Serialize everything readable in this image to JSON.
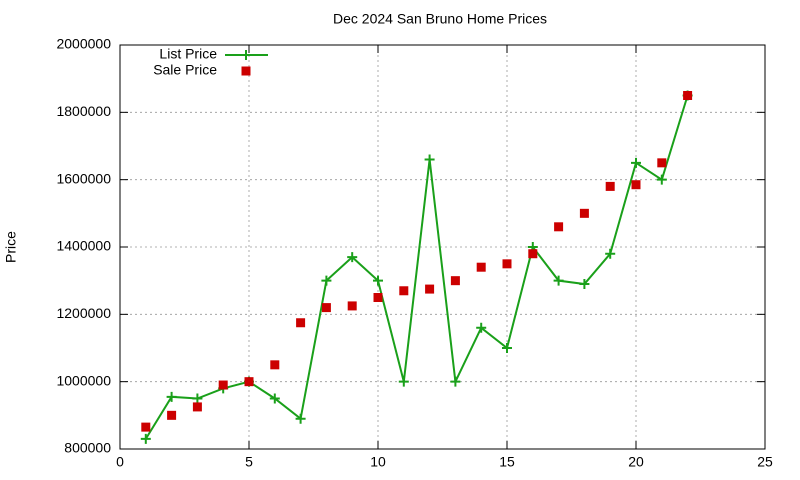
{
  "chart_data": {
    "type": "line",
    "title": "Dec 2024 San Bruno Home Prices",
    "y_label": "Price",
    "x": [
      1,
      2,
      3,
      4,
      5,
      6,
      7,
      8,
      9,
      10,
      11,
      12,
      13,
      14,
      15,
      16,
      17,
      18,
      19,
      20,
      21,
      22
    ],
    "series": [
      {
        "name": "List Price",
        "color": "#1aa01a",
        "mode": "lines+markers",
        "values": [
          830000,
          955000,
          950000,
          980000,
          1000000,
          950000,
          890000,
          1300000,
          1370000,
          1300000,
          1000000,
          1660000,
          1000000,
          1160000,
          1100000,
          1400000,
          1300000,
          1290000,
          1380000,
          1650000,
          1600000,
          1850000
        ]
      },
      {
        "name": "Sale Price",
        "color": "#cc0000",
        "mode": "markers",
        "values": [
          865000,
          900000,
          925000,
          990000,
          1000000,
          1050000,
          1175000,
          1220000,
          1225000,
          1250000,
          1270000,
          1275000,
          1300000,
          1340000,
          1350000,
          1380000,
          1460000,
          1500000,
          1580000,
          1585000,
          1650000,
          1850000
        ]
      }
    ],
    "xlim": [
      0,
      25
    ],
    "xticks": [
      0,
      5,
      10,
      15,
      20,
      25
    ],
    "ylim": [
      800000,
      2000000
    ],
    "yticks": [
      800000,
      1000000,
      1200000,
      1400000,
      1600000,
      1800000,
      2000000
    ],
    "grid": true,
    "legend": "top-left"
  }
}
